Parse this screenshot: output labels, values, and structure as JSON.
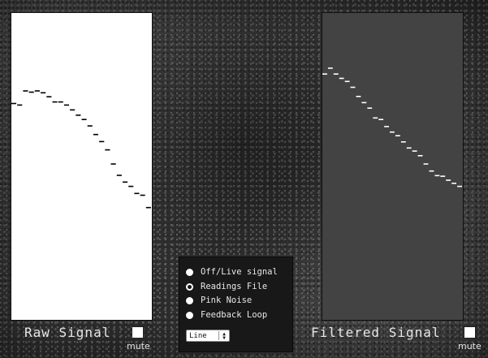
{
  "panels": {
    "raw": {
      "label": "Raw Signal",
      "mute_label": "mute",
      "muted": false,
      "background": "#ffffff",
      "line_color": "#000000"
    },
    "filtered": {
      "label": "Filtered Signal",
      "mute_label": "mute",
      "muted": false,
      "background": "#434343",
      "line_color": "#ffffff"
    }
  },
  "controls": {
    "sources": [
      {
        "label": "Off/Live signal",
        "selected": false
      },
      {
        "label": "Readings File",
        "selected": true
      },
      {
        "label": "Pink Noise",
        "selected": false
      },
      {
        "label": "Feedback Loop",
        "selected": false
      }
    ],
    "display_mode": {
      "value": "Line"
    }
  },
  "signals": {
    "raw": [
      0.705,
      0.7,
      0.746,
      0.742,
      0.746,
      0.74,
      0.727,
      0.71,
      0.71,
      0.7,
      0.684,
      0.667,
      0.653,
      0.632,
      0.604,
      0.581,
      0.554,
      0.508,
      0.471,
      0.449,
      0.435,
      0.412,
      0.406,
      0.366
    ],
    "filtered": [
      0.801,
      0.82,
      0.801,
      0.787,
      0.777,
      0.758,
      0.728,
      0.708,
      0.69,
      0.658,
      0.653,
      0.63,
      0.612,
      0.6,
      0.58,
      0.56,
      0.55,
      0.535,
      0.508,
      0.485,
      0.47,
      0.468,
      0.455,
      0.445,
      0.435
    ]
  }
}
